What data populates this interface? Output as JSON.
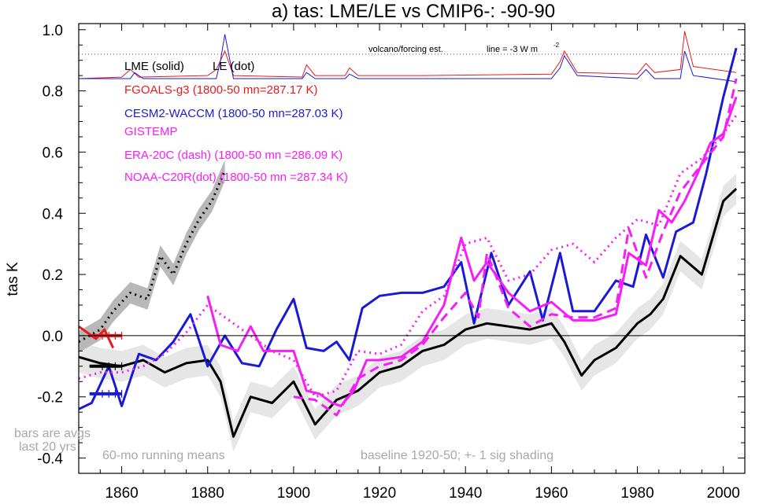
{
  "chart_data": {
    "type": "line",
    "title": "a) tas: LME/LE vs CMIP6-: -90-90",
    "ylabel": "tas K",
    "xlabel": "",
    "xlim": [
      1850,
      2005
    ],
    "ylim": [
      -0.45,
      1.02
    ],
    "xticks": [
      1860,
      1880,
      1900,
      1920,
      1940,
      1960,
      1980,
      2000
    ],
    "yticks": [
      -0.4,
      -0.2,
      0.0,
      0.2,
      0.4,
      0.6,
      0.8,
      1.0
    ],
    "ytick_labels": [
      "-0.4",
      "-0.2",
      "0.0",
      "0.2",
      "0.4",
      "0.6",
      "0.8",
      "1.0"
    ],
    "legend": {
      "header_lme": "LME (solid)",
      "header_le": "LE (dot)",
      "items": [
        {
          "label": "FGOALS-g3 (1800-50 mn=287.17 K)",
          "color": "#e8191c"
        },
        {
          "label": "CESM2-WACCM (1800-50 mn=287.03 K)",
          "color": "#1a1ad6"
        },
        {
          "label": "GISTEMP",
          "color": "#f51ef5"
        },
        {
          "label": "ERA-20C (dash) (1800-50 mn =286.09 K)",
          "color": "#f51ef5"
        },
        {
          "label": "NOAA-C20R(dot) (1800-50 mn =287.34 K)",
          "color": "#f51ef5"
        }
      ]
    },
    "annotations": {
      "volcano": "volcano/forcing est.",
      "forcing_line": "line = -3 W m",
      "forcing_sup": "-2",
      "bars_note_1": "bars are avgs",
      "bars_note_2": "last 20 yrs",
      "running_means": "60-mo running means",
      "baseline": "baseline 1920-50; +- 1 sig shading"
    },
    "bars": [
      {
        "name": "FGOALS-g3",
        "value": 0.0,
        "color": "#e8191c"
      },
      {
        "name": "LME",
        "value": -0.1,
        "color": "#000000"
      },
      {
        "name": "CESM2-WACCM",
        "value": -0.19,
        "color": "#1a1ad6"
      }
    ],
    "series": [
      {
        "name": "LME",
        "style": "solid",
        "color": "#000000",
        "x": [
          1850,
          1855,
          1860,
          1865,
          1870,
          1875,
          1880,
          1883,
          1886,
          1890,
          1895,
          1900,
          1905,
          1910,
          1915,
          1920,
          1925,
          1930,
          1935,
          1940,
          1945,
          1950,
          1955,
          1960,
          1963,
          1967,
          1970,
          1975,
          1980,
          1983,
          1986,
          1990,
          1995,
          2000,
          2003
        ],
        "y": [
          -0.07,
          -0.09,
          -0.1,
          -0.08,
          -0.12,
          -0.09,
          -0.08,
          -0.15,
          -0.33,
          -0.2,
          -0.22,
          -0.15,
          -0.29,
          -0.21,
          -0.18,
          -0.12,
          -0.1,
          -0.05,
          -0.03,
          0.02,
          0.04,
          0.03,
          0.02,
          0.04,
          -0.02,
          -0.13,
          -0.08,
          -0.04,
          0.04,
          0.07,
          0.12,
          0.26,
          0.2,
          0.44,
          0.48
        ]
      },
      {
        "name": "LE",
        "style": "dot",
        "color": "#000000",
        "x": [
          1850,
          1855,
          1858,
          1862,
          1866,
          1869,
          1872,
          1875,
          1878,
          1881,
          1884
        ],
        "y": [
          -0.02,
          0.02,
          0.08,
          0.14,
          0.12,
          0.26,
          0.2,
          0.3,
          0.38,
          0.44,
          0.54
        ]
      },
      {
        "name": "FGOALS-g3",
        "style": "solid",
        "color": "#e8191c",
        "x": [
          1850,
          1852,
          1854,
          1856,
          1858
        ],
        "y": [
          0.03,
          0.01,
          -0.01,
          0.02,
          -0.04
        ]
      },
      {
        "name": "CESM2-WACCM",
        "style": "solid",
        "color": "#1a1ad6",
        "x": [
          1850,
          1853,
          1857,
          1860,
          1864,
          1868,
          1872,
          1876,
          1880,
          1884,
          1888,
          1892,
          1896,
          1900,
          1903,
          1907,
          1910,
          1913,
          1916,
          1920,
          1925,
          1930,
          1935,
          1939,
          1942,
          1946,
          1950,
          1955,
          1958,
          1962,
          1965,
          1970,
          1975,
          1979,
          1982,
          1986,
          1989,
          1993,
          1996,
          2000,
          2003
        ],
        "y": [
          -0.24,
          -0.22,
          -0.1,
          -0.23,
          -0.06,
          -0.08,
          -0.02,
          0.07,
          -0.1,
          0.0,
          -0.09,
          -0.1,
          0.02,
          0.12,
          -0.04,
          -0.05,
          -0.02,
          -0.08,
          0.09,
          0.13,
          0.14,
          0.14,
          0.16,
          0.24,
          0.04,
          0.27,
          0.1,
          0.21,
          0.05,
          0.27,
          0.08,
          0.08,
          0.18,
          0.16,
          0.33,
          0.19,
          0.34,
          0.37,
          0.53,
          0.78,
          0.94
        ]
      },
      {
        "name": "GISTEMP",
        "style": "solid",
        "color": "#f51ef5",
        "x": [
          1880,
          1883,
          1887,
          1890,
          1893,
          1897,
          1900,
          1903,
          1906,
          1909,
          1911,
          1914,
          1917,
          1920,
          1925,
          1930,
          1935,
          1939,
          1942,
          1945,
          1950,
          1955,
          1960,
          1965,
          1970,
          1975,
          1978,
          1982,
          1985,
          1988,
          1991,
          1994,
          1997,
          2000,
          2003
        ],
        "y": [
          0.13,
          -0.03,
          -0.05,
          0.03,
          -0.05,
          -0.05,
          -0.05,
          -0.18,
          -0.19,
          -0.22,
          -0.23,
          -0.18,
          -0.08,
          -0.08,
          -0.07,
          -0.02,
          0.1,
          0.32,
          0.18,
          0.24,
          0.14,
          0.08,
          0.11,
          0.05,
          0.05,
          0.07,
          0.27,
          0.23,
          0.41,
          0.37,
          0.44,
          0.53,
          0.63,
          0.66,
          0.78
        ]
      },
      {
        "name": "ERA-20C",
        "style": "dash",
        "color": "#f51ef5",
        "x": [
          1900,
          1905,
          1910,
          1915,
          1920,
          1925,
          1930,
          1935,
          1940,
          1943,
          1945,
          1950,
          1955,
          1960,
          1965,
          1970,
          1975,
          1978,
          1982,
          1986,
          1990,
          1995,
          2000,
          2003
        ],
        "y": [
          -0.2,
          -0.21,
          -0.26,
          -0.14,
          -0.1,
          -0.08,
          -0.03,
          0.06,
          0.14,
          0.06,
          0.27,
          0.09,
          0.03,
          0.07,
          0.06,
          0.06,
          0.09,
          0.35,
          0.19,
          0.34,
          0.47,
          0.56,
          0.65,
          0.84
        ]
      },
      {
        "name": "NOAA-C20R",
        "style": "dot",
        "color": "#f51ef5",
        "x": [
          1850,
          1855,
          1860,
          1865,
          1870,
          1875,
          1880,
          1885,
          1890,
          1895,
          1900,
          1905,
          1910,
          1915,
          1920,
          1925,
          1930,
          1935,
          1940,
          1945,
          1950,
          1955,
          1960,
          1965,
          1970,
          1975,
          1980,
          1985,
          1990,
          1995,
          2000,
          2003
        ],
        "y": [
          -0.14,
          -0.12,
          -0.12,
          -0.1,
          -0.06,
          0.01,
          0.1,
          0.05,
          0.0,
          -0.05,
          -0.08,
          -0.2,
          -0.18,
          -0.05,
          -0.06,
          -0.03,
          0.08,
          0.13,
          0.3,
          0.32,
          0.18,
          0.2,
          0.28,
          0.3,
          0.24,
          0.32,
          0.38,
          0.36,
          0.53,
          0.58,
          0.66,
          0.72
        ]
      }
    ],
    "forcing_series": [
      {
        "name": "LME",
        "color": "#e8191c",
        "x": [
          1850,
          1860,
          1862,
          1864,
          1880,
          1882,
          1884,
          1886,
          1902,
          1903,
          1905,
          1912,
          1913,
          1915,
          1930,
          1960,
          1962,
          1963,
          1966,
          1980,
          1982,
          1984,
          1990,
          1991,
          1993,
          2003
        ],
        "y": [
          0.84,
          0.845,
          0.87,
          0.845,
          0.85,
          0.87,
          0.93,
          0.85,
          0.845,
          0.885,
          0.85,
          0.85,
          0.875,
          0.85,
          0.85,
          0.855,
          0.895,
          0.93,
          0.86,
          0.855,
          0.89,
          0.86,
          0.87,
          0.995,
          0.88,
          0.86
        ]
      },
      {
        "name": "LE",
        "color": "#1a1ad6",
        "x": [
          1850,
          1862,
          1863,
          1865,
          1882,
          1883,
          1884,
          1886,
          1902,
          1903,
          1905,
          1912,
          1913,
          1915,
          1960,
          1962,
          1963,
          1966,
          1980,
          1982,
          1984,
          1990,
          1991,
          1993,
          2003
        ],
        "y": [
          0.84,
          0.84,
          0.86,
          0.84,
          0.84,
          0.9,
          0.985,
          0.84,
          0.84,
          0.86,
          0.84,
          0.84,
          0.855,
          0.84,
          0.84,
          0.875,
          0.915,
          0.85,
          0.84,
          0.87,
          0.84,
          0.84,
          0.93,
          0.85,
          0.83
        ]
      }
    ]
  }
}
